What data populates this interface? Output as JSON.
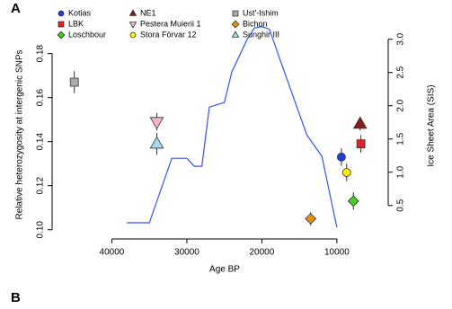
{
  "chart_data": {
    "type": "scatter",
    "panel_label": "A",
    "xlabel": "Age BP",
    "ylabel": "Relative heterozygosity at intergenic SNPs",
    "y2label": "Ice Sheet Area (SIS)",
    "xlim": [
      47000,
      4000
    ],
    "xticks": [
      40000,
      30000,
      20000,
      10000
    ],
    "ylim": [
      0.095,
      0.188
    ],
    "yticks": [
      {
        "value": 0.1,
        "label": "0.10"
      },
      0.12,
      0.14,
      0.16,
      0.18
    ],
    "y2lim": [
      -0.03,
      3.05
    ],
    "y2ticks": [
      0.5,
      {
        "value": 1,
        "label": "1.0"
      },
      1.5,
      {
        "value": 2,
        "label": "2.0"
      },
      2.5,
      {
        "value": 3,
        "label": "3.0"
      }
    ],
    "series": [
      {
        "name": "Kotias",
        "color": "#1f3fd8",
        "marker": "circle",
        "x": [
          9400
        ],
        "values": [
          0.133
        ],
        "errors": [
          0.004
        ]
      },
      {
        "name": "LBK",
        "color": "#e0202a",
        "marker": "square",
        "x": [
          6800
        ],
        "values": [
          0.139
        ],
        "errors": [
          0.004
        ]
      },
      {
        "name": "Loschbour",
        "color": "#44cc22",
        "marker": "diamond",
        "x": [
          7800
        ],
        "values": [
          0.113
        ],
        "errors": [
          0.004
        ]
      },
      {
        "name": "NE1",
        "color": "#8b1a1a",
        "marker": "triangle-up",
        "x": [
          6900
        ],
        "values": [
          0.148
        ],
        "errors": [
          0.003
        ]
      },
      {
        "name": "Pestera Muierii 1",
        "color": "#f4b6c2",
        "marker": "triangle-down",
        "x": [
          34000
        ],
        "values": [
          0.149
        ],
        "errors": [
          0.004
        ]
      },
      {
        "name": "Stora Förvar 12",
        "color": "#ffee00",
        "marker": "circle",
        "x": [
          8700
        ],
        "values": [
          0.126
        ],
        "errors": [
          0.004
        ]
      },
      {
        "name": "Ust'-Ishim",
        "color": "#aaaaaa",
        "marker": "square",
        "x": [
          45000
        ],
        "values": [
          0.167
        ],
        "errors": [
          0.005
        ]
      },
      {
        "name": "Bichon",
        "color": "#e8900a",
        "marker": "diamond",
        "x": [
          13500
        ],
        "values": [
          0.105
        ],
        "errors": [
          0.003
        ]
      },
      {
        "name": "Sunghir III",
        "color": "#a8d8ea",
        "marker": "triangle-up",
        "x": [
          34000
        ],
        "values": [
          0.139
        ],
        "errors": [
          0.005
        ]
      }
    ],
    "line": {
      "axis": "y2",
      "color": "#3355ee",
      "x": [
        38000,
        35000,
        32000,
        30000,
        29000,
        28000,
        27000,
        25000,
        24000,
        22000,
        21000,
        20000,
        19000,
        17000,
        14000,
        12000,
        10000
      ],
      "values": [
        0.24,
        0.24,
        1.21,
        1.21,
        1.09,
        1.09,
        1.98,
        2.05,
        2.51,
        2.99,
        3.17,
        3.19,
        3.15,
        2.51,
        1.56,
        1.24,
        0.17
      ]
    }
  },
  "next_panel": {
    "label": "B"
  }
}
